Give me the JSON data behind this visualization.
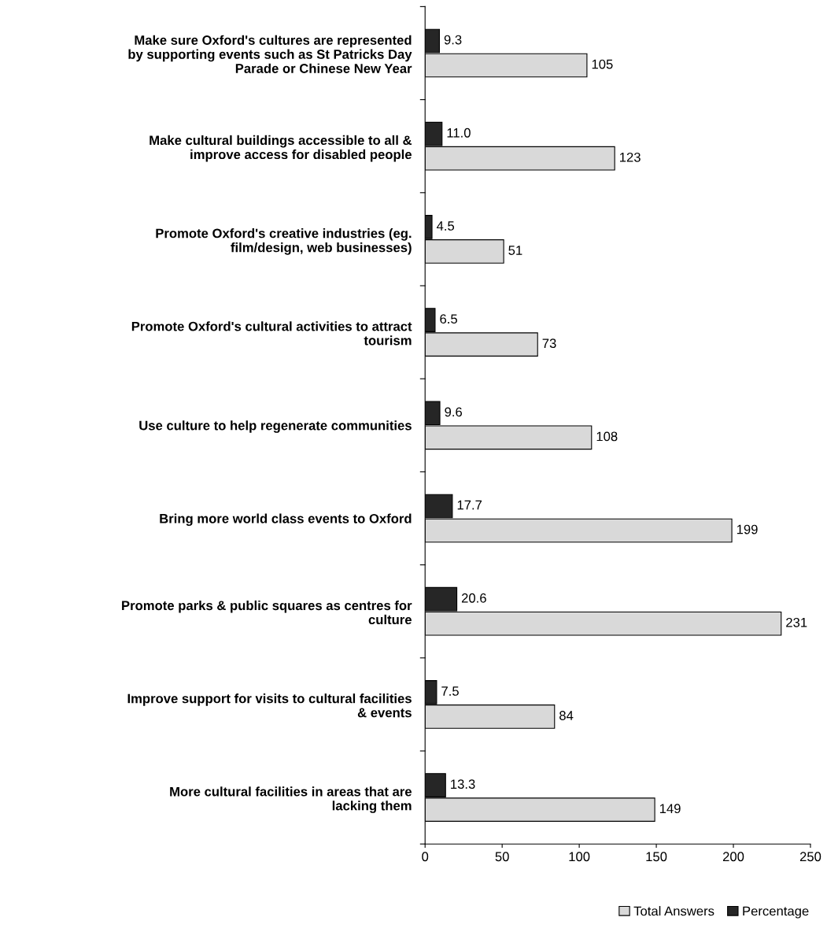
{
  "chart_data": {
    "type": "bar",
    "orientation": "horizontal",
    "categories": [
      "Make sure Oxford's cultures are represented\nby supporting events such as St Patricks Day\nParade or Chinese New Year",
      "Make cultural buildings accessible to all &\nimprove access for disabled people",
      "Promote Oxford's creative industries (eg.\nfilm/design, web businesses)",
      "Promote Oxford's cultural activities to attract\ntourism",
      "Use culture to help regenerate communities",
      "Bring more world class events to Oxford",
      "Promote parks & public squares as centres for\nculture",
      "Improve support for visits to cultural facilities\n& events",
      "More cultural facilities in areas that are\nlacking them"
    ],
    "series": [
      {
        "name": "Total Answers",
        "color": "#d9d9d9",
        "values": [
          105,
          123,
          51,
          73,
          108,
          199,
          231,
          84,
          149
        ]
      },
      {
        "name": "Percentage",
        "color": "#262626",
        "values": [
          9.3,
          11.0,
          4.5,
          6.5,
          9.6,
          17.7,
          20.6,
          7.5,
          13.3
        ],
        "value_labels": [
          "9.3",
          "11.0",
          "4.5",
          "6.5",
          "9.6",
          "17.7",
          "20.6",
          "7.5",
          "13.3"
        ]
      }
    ],
    "xlim": [
      0,
      250
    ],
    "xticks": [
      0,
      50,
      100,
      150,
      200,
      250
    ],
    "data_labels": true,
    "grid": false,
    "legend": "bottom"
  }
}
